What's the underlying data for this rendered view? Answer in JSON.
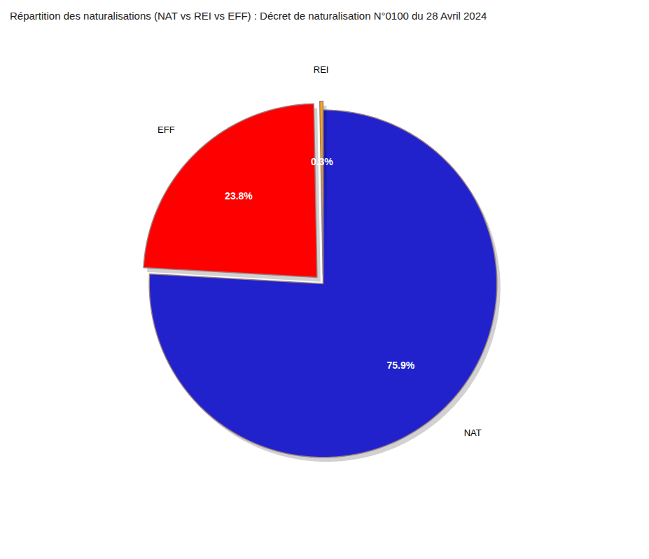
{
  "chart_data": {
    "type": "pie",
    "title": "Répartition des naturalisations (NAT vs REI vs EFF) : Décret de naturalisation N°0100 du 28 Avril 2024",
    "categories": [
      "NAT",
      "EFF",
      "REI"
    ],
    "values": [
      75.9,
      23.8,
      0.3
    ],
    "value_labels": [
      "75.9%",
      "23.8%",
      "0.3%"
    ],
    "colors": [
      "#2222CC",
      "#FF0000",
      "#FFA500"
    ],
    "data_labels": true
  }
}
